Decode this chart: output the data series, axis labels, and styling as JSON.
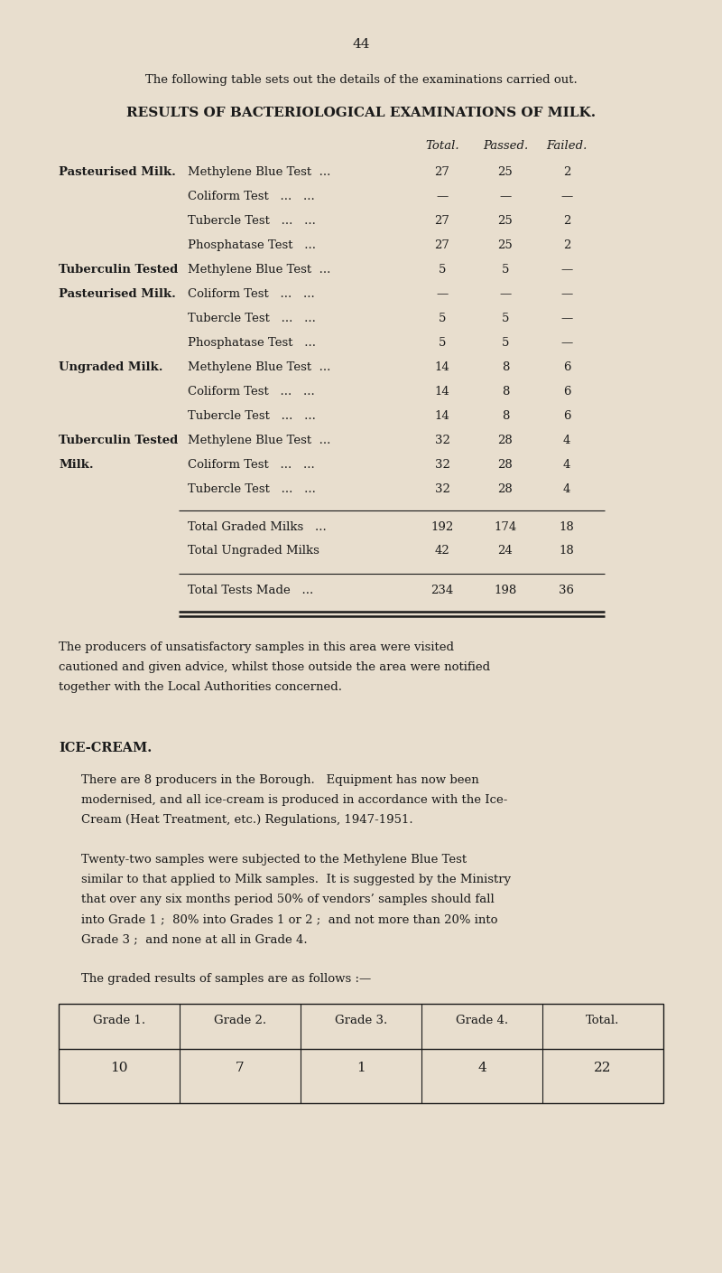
{
  "bg_color": "#e8dece",
  "page_number": "44",
  "intro_text": "The following table sets out the details of the examinations carried out.",
  "table_title": "RESULTS OF BACTERIOLOGICAL EXAMINATIONS OF MILK.",
  "col_headers": [
    "Total.",
    "Passed.",
    "Failed."
  ],
  "table_rows": [
    {
      "category": "Pasteurised Milk.",
      "test": "Methylene Blue Test  ...",
      "total": "27",
      "passed": "25",
      "failed": "2",
      "cat_bold": true,
      "cat_line2": ""
    },
    {
      "category": "",
      "test": "Coliform Test   ...   ...",
      "total": "—",
      "passed": "—",
      "failed": "—",
      "cat_bold": false,
      "cat_line2": ""
    },
    {
      "category": "",
      "test": "Tubercle Test   ...   ...",
      "total": "27",
      "passed": "25",
      "failed": "2",
      "cat_bold": false,
      "cat_line2": ""
    },
    {
      "category": "",
      "test": "Phosphatase Test   ...",
      "total": "27",
      "passed": "25",
      "failed": "2",
      "cat_bold": false,
      "cat_line2": ""
    },
    {
      "category": "Tuberculin Tested",
      "test": "Methylene Blue Test  ...",
      "total": "5",
      "passed": "5",
      "failed": "—",
      "cat_bold": true,
      "cat_line2": "Pasteurised Milk."
    },
    {
      "category": "",
      "test": "Coliform Test   ...   ...",
      "total": "—",
      "passed": "—",
      "failed": "—",
      "cat_bold": false,
      "cat_line2": ""
    },
    {
      "category": "",
      "test": "Tubercle Test   ...   ...",
      "total": "5",
      "passed": "5",
      "failed": "—",
      "cat_bold": false,
      "cat_line2": ""
    },
    {
      "category": "",
      "test": "Phosphatase Test   ...",
      "total": "5",
      "passed": "5",
      "failed": "—",
      "cat_bold": false,
      "cat_line2": ""
    },
    {
      "category": "Ungraded Milk.",
      "test": "Methylene Blue Test  ...",
      "total": "14",
      "passed": "8",
      "failed": "6",
      "cat_bold": true,
      "cat_line2": ""
    },
    {
      "category": "",
      "test": "Coliform Test   ...   ...",
      "total": "14",
      "passed": "8",
      "failed": "6",
      "cat_bold": false,
      "cat_line2": ""
    },
    {
      "category": "",
      "test": "Tubercle Test   ...   ...",
      "total": "14",
      "passed": "8",
      "failed": "6",
      "cat_bold": false,
      "cat_line2": ""
    },
    {
      "category": "Tuberculin Tested",
      "test": "Methylene Blue Test  ...",
      "total": "32",
      "passed": "28",
      "failed": "4",
      "cat_bold": true,
      "cat_line2": "Milk."
    },
    {
      "category": "",
      "test": "Coliform Test   ...   ...",
      "total": "32",
      "passed": "28",
      "failed": "4",
      "cat_bold": false,
      "cat_line2": ""
    },
    {
      "category": "",
      "test": "Tubercle Test   ...   ...",
      "total": "32",
      "passed": "28",
      "failed": "4",
      "cat_bold": false,
      "cat_line2": ""
    }
  ],
  "summary_rows": [
    {
      "label": "Total Graded Milks   ...",
      "total": "192",
      "passed": "174",
      "failed": "18"
    },
    {
      "label": "Total Ungraded Milks",
      "total": "42",
      "passed": "24",
      "failed": "18"
    }
  ],
  "total_row": {
    "label": "Total Tests Made   ...",
    "total": "234",
    "passed": "198",
    "failed": "36"
  },
  "para1_lines": [
    "The producers of unsatisfactory samples in this area were visited",
    "cautioned and given advice, whilst those outside the area were notified",
    "together with the Local Authorities concerned."
  ],
  "ice_cream_heading": "ICE-CREAM.",
  "ice_cream_para1_lines": [
    "There are 8 producers in the Borough.   Equipment has now been",
    "modernised, and all ice-cream is produced in accordance with the Ice-",
    "Cream (Heat Treatment, etc.) Regulations, 1947-1951."
  ],
  "ice_cream_para2_lines": [
    "Twenty-two samples were subjected to the Methylene Blue Test",
    "similar to that applied to Milk samples.  It is suggested by the Ministry",
    "that over any six months period 50% of vendors’ samples should fall",
    "into Grade 1 ;  80% into Grades 1 or 2 ;  and not more than 20% into",
    "Grade 3 ;  and none at all in Grade 4."
  ],
  "ice_cream_intro": "The graded results of samples are as follows :—",
  "ice_cream_headers": [
    "Grade 1.",
    "Grade 2.",
    "Grade 3.",
    "Grade 4.",
    "Total."
  ],
  "ice_cream_values": [
    "10",
    "7",
    "1",
    "4",
    "22"
  ],
  "text_color": "#1a1a1a",
  "line_color": "#1a1a1a"
}
